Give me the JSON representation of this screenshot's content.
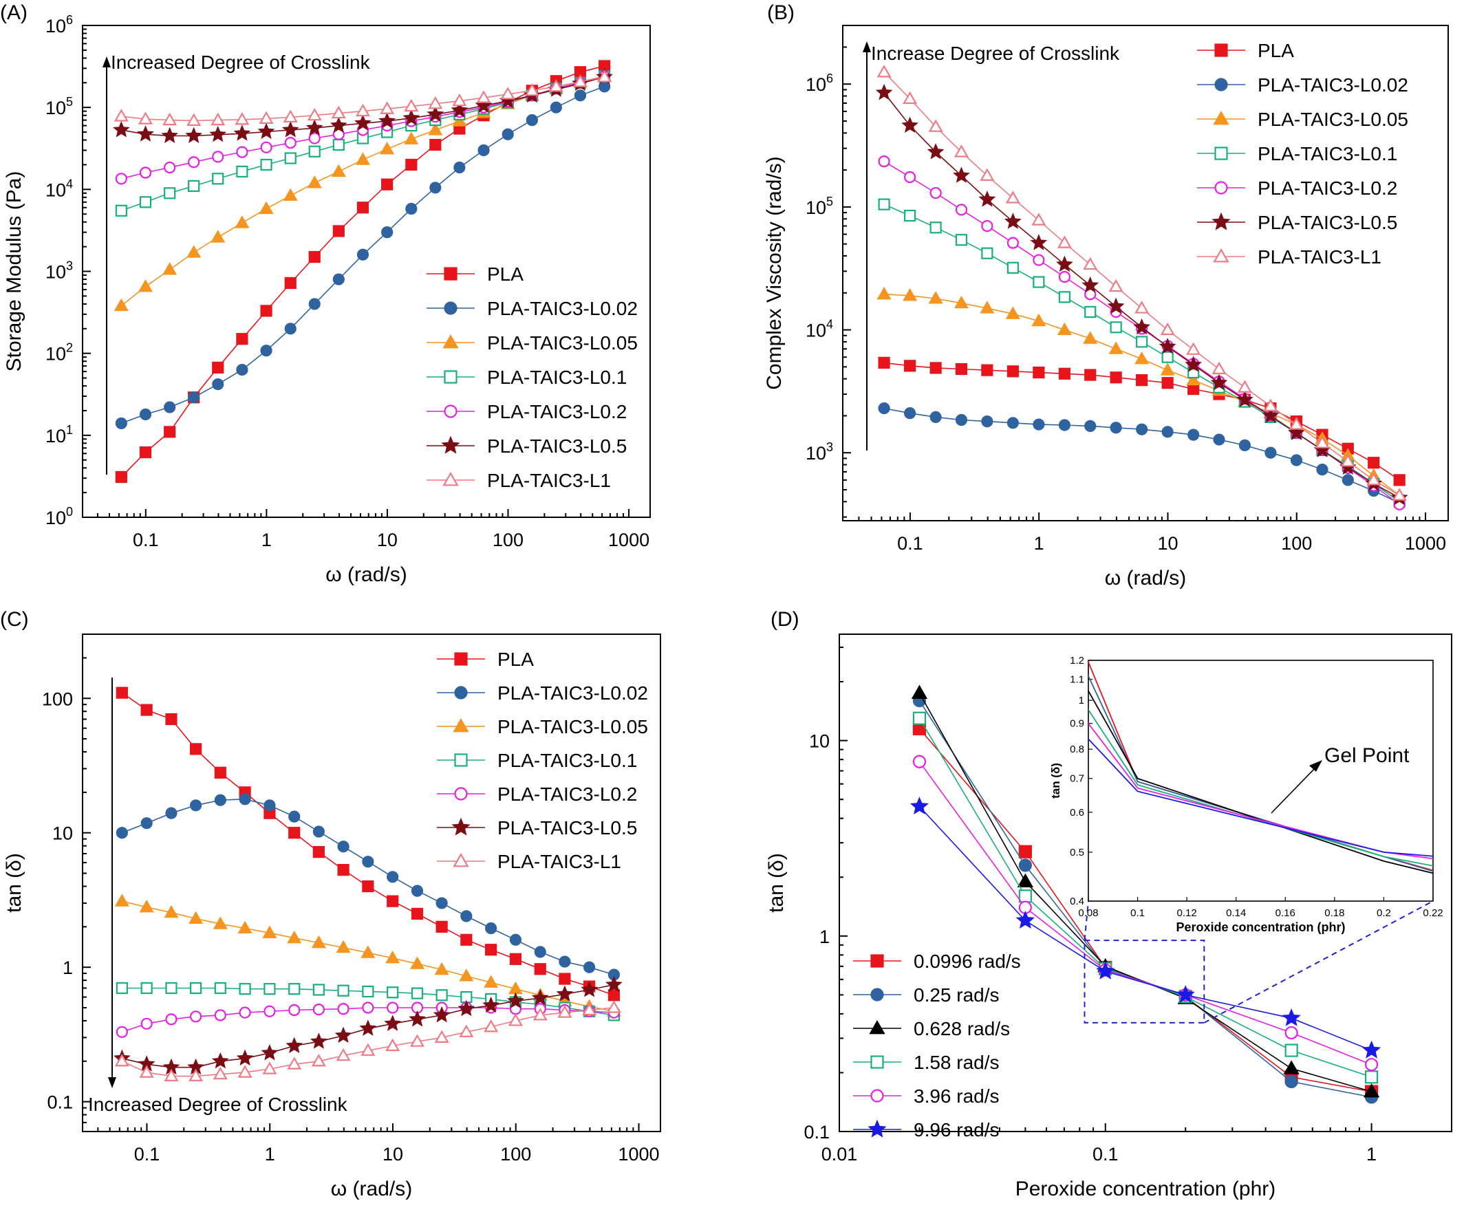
{
  "colors": {
    "PLA": "#e8141c",
    "L0.02": "#2f63a0",
    "L0.05": "#f5941e",
    "L0.1": "#18b07a",
    "L0.2": "#e61ee6",
    "L0.5": "#7a0c14",
    "L1": "#f07a84",
    "r0.0996": "#e8141c",
    "r0.25": "#2f63a0",
    "r0.628": "#000000",
    "r1.58": "#18b07a",
    "r3.96": "#e61ee6",
    "r9.96": "#1a1ae6"
  },
  "chart_data": [
    {
      "id": "A",
      "panel_label": "(A)",
      "type": "line",
      "xscale": "log",
      "yscale": "log",
      "xlim": [
        0.03,
        1500
      ],
      "ylim": [
        1,
        1000000
      ],
      "xlabel": "ω (rad/s)",
      "ylabel": "Storage Modulus (Pa)",
      "x_ticks": [
        "0.1",
        "1",
        "10",
        "100",
        "1000"
      ],
      "y_ticks": [
        [
          "10",
          "0"
        ],
        [
          "10",
          "1"
        ],
        [
          "10",
          "2"
        ],
        [
          "10",
          "3"
        ],
        [
          "10",
          "4"
        ],
        [
          "10",
          "5"
        ],
        [
          "10",
          "6"
        ]
      ],
      "annotation": "Increased Degree of Crosslink",
      "arrow_direction": "up",
      "legend_position": "lower-right",
      "x": [
        0.0628,
        0.0996,
        0.158,
        0.25,
        0.396,
        0.628,
        0.996,
        1.58,
        2.5,
        3.96,
        6.28,
        9.96,
        15.8,
        25,
        39.6,
        62.8,
        99.6,
        158,
        250,
        396,
        628
      ],
      "series": [
        {
          "name": "PLA",
          "key": "PLA",
          "marker": "square",
          "fill": true,
          "values": [
            3.1,
            6.2,
            11,
            29,
            67,
            150,
            330,
            720,
            1500,
            3100,
            6000,
            11500,
            20000,
            35000,
            55000,
            80000,
            115000,
            160000,
            210000,
            270000,
            320000
          ]
        },
        {
          "name": "PLA-TAIC3-L0.02",
          "key": "L0.02",
          "marker": "circle",
          "fill": true,
          "values": [
            14,
            18,
            22,
            29,
            42,
            63,
            108,
            200,
            400,
            800,
            1600,
            3000,
            5800,
            10500,
            18500,
            30000,
            47000,
            70000,
            100000,
            140000,
            180000
          ]
        },
        {
          "name": "PLA-TAIC3-L0.05",
          "key": "L0.05",
          "marker": "triangle",
          "fill": true,
          "values": [
            380,
            650,
            1050,
            1700,
            2600,
            3900,
            5800,
            8400,
            12000,
            16500,
            23000,
            31000,
            41000,
            53000,
            68000,
            86000,
            110000,
            140000,
            170000,
            205000,
            240000
          ]
        },
        {
          "name": "PLA-TAIC3-L0.1",
          "key": "L0.1",
          "marker": "square",
          "fill": false,
          "values": [
            5500,
            7000,
            9000,
            11000,
            13500,
            16500,
            20000,
            24000,
            29000,
            35000,
            42000,
            50000,
            60000,
            70000,
            82000,
            96000,
            115000,
            140000,
            170000,
            200000,
            240000
          ]
        },
        {
          "name": "PLA-TAIC3-L0.2",
          "key": "L0.2",
          "marker": "circle",
          "fill": false,
          "values": [
            13500,
            16000,
            18500,
            21500,
            25000,
            28500,
            32500,
            37000,
            42000,
            47000,
            53000,
            60000,
            68000,
            77000,
            88000,
            100000,
            118000,
            140000,
            170000,
            200000,
            240000
          ]
        },
        {
          "name": "PLA-TAIC3-L0.5",
          "key": "L0.5",
          "marker": "star",
          "fill": true,
          "values": [
            53000,
            47000,
            45000,
            45000,
            46500,
            48000,
            50500,
            53000,
            56000,
            60000,
            64000,
            68000,
            74000,
            82000,
            92000,
            105000,
            120000,
            140000,
            165000,
            195000,
            235000
          ]
        },
        {
          "name": "PLA-TAIC3-L1",
          "key": "L1",
          "marker": "triangle",
          "fill": false,
          "values": [
            78000,
            72000,
            70000,
            69000,
            70000,
            71000,
            73000,
            76000,
            80000,
            85000,
            90000,
            96000,
            103000,
            111000,
            120000,
            131000,
            145000,
            160000,
            180000,
            205000,
            235000
          ]
        }
      ]
    },
    {
      "id": "B",
      "panel_label": "(B)",
      "type": "line",
      "xscale": "log",
      "yscale": "log",
      "xlim": [
        0.03,
        1500
      ],
      "ylim": [
        280,
        3000000
      ],
      "xlabel": "ω (rad/s)",
      "ylabel": "Complex Viscosity (rad/s)",
      "x_ticks": [
        "0.1",
        "1",
        "10",
        "100",
        "1000"
      ],
      "y_ticks": [
        [
          "10",
          "3"
        ],
        [
          "10",
          "4"
        ],
        [
          "10",
          "5"
        ],
        [
          "10",
          "6"
        ]
      ],
      "annotation": "Increase Degree of Crosslink",
      "arrow_direction": "up",
      "legend_position": "top-right",
      "x": [
        0.0628,
        0.0996,
        0.158,
        0.25,
        0.396,
        0.628,
        0.996,
        1.58,
        2.5,
        3.96,
        6.28,
        9.96,
        15.8,
        25,
        39.6,
        62.8,
        99.6,
        158,
        250,
        396,
        628
      ],
      "series": [
        {
          "name": "PLA",
          "key": "PLA",
          "marker": "square",
          "fill": true,
          "values": [
            5400,
            5100,
            4900,
            4800,
            4700,
            4600,
            4500,
            4400,
            4300,
            4100,
            3900,
            3700,
            3300,
            3000,
            2700,
            2300,
            1800,
            1400,
            1080,
            830,
            600
          ]
        },
        {
          "name": "PLA-TAIC3-L0.02",
          "key": "L0.02",
          "marker": "circle",
          "fill": true,
          "values": [
            2300,
            2100,
            1950,
            1850,
            1800,
            1750,
            1700,
            1680,
            1650,
            1600,
            1550,
            1480,
            1400,
            1280,
            1150,
            1000,
            870,
            730,
            600,
            490,
            390
          ]
        },
        {
          "name": "PLA-TAIC3-L0.05",
          "key": "L0.05",
          "marker": "triangle",
          "fill": true,
          "values": [
            19500,
            19000,
            18000,
            16500,
            15000,
            13500,
            11800,
            10000,
            8500,
            7000,
            5800,
            4700,
            3900,
            3200,
            2600,
            2100,
            1700,
            1300,
            950,
            650,
            450
          ]
        },
        {
          "name": "PLA-TAIC3-L0.1",
          "key": "L0.1",
          "marker": "square",
          "fill": false,
          "values": [
            105000,
            85000,
            68000,
            54000,
            42000,
            32000,
            24500,
            18500,
            14000,
            10500,
            8000,
            6000,
            4500,
            3400,
            2600,
            1950,
            1450,
            1050,
            780,
            560,
            400
          ]
        },
        {
          "name": "PLA-TAIC3-L0.2",
          "key": "L0.2",
          "marker": "circle",
          "fill": false,
          "values": [
            235000,
            175000,
            130000,
            95000,
            70000,
            51000,
            37000,
            27000,
            19500,
            14000,
            10200,
            7400,
            5300,
            3800,
            2750,
            2000,
            1450,
            1050,
            750,
            540,
            380
          ]
        },
        {
          "name": "PLA-TAIC3-L0.5",
          "key": "L0.5",
          "marker": "star",
          "fill": true,
          "values": [
            850000,
            460000,
            280000,
            180000,
            115000,
            76000,
            51000,
            34000,
            23000,
            15500,
            10500,
            7300,
            5200,
            3700,
            2700,
            2000,
            1450,
            1050,
            760,
            560,
            430
          ]
        },
        {
          "name": "PLA-TAIC3-L1",
          "key": "L1",
          "marker": "triangle",
          "fill": false,
          "values": [
            1250000,
            760000,
            450000,
            280000,
            180000,
            118000,
            78000,
            51000,
            34000,
            22500,
            15000,
            10000,
            6900,
            4800,
            3400,
            2400,
            1700,
            1200,
            850,
            600,
            450
          ]
        }
      ]
    },
    {
      "id": "C",
      "panel_label": "(C)",
      "type": "line",
      "xscale": "log",
      "yscale": "log",
      "xlim": [
        0.03,
        1500
      ],
      "ylim": [
        0.06,
        300
      ],
      "xlabel": "ω (rad/s)",
      "ylabel": "tan (δ)",
      "x_ticks": [
        "0.1",
        "1",
        "10",
        "100",
        "1000"
      ],
      "y_ticks": [
        "0.1",
        "1",
        "10",
        "100"
      ],
      "annotation": "Increased Degree of Crosslink",
      "arrow_direction": "down",
      "legend_position": "top-right",
      "x": [
        0.0628,
        0.0996,
        0.158,
        0.25,
        0.396,
        0.628,
        0.996,
        1.58,
        2.5,
        3.96,
        6.28,
        9.96,
        15.8,
        25,
        39.6,
        62.8,
        99.6,
        158,
        250,
        396,
        628
      ],
      "series": [
        {
          "name": "PLA",
          "key": "PLA",
          "marker": "square",
          "fill": true,
          "values": [
            110,
            82,
            70,
            42,
            28,
            20,
            14,
            10,
            7.2,
            5.3,
            4.0,
            3.1,
            2.5,
            2.0,
            1.6,
            1.35,
            1.15,
            0.97,
            0.82,
            0.72,
            0.62
          ]
        },
        {
          "name": "PLA-TAIC3-L0.02",
          "key": "L0.02",
          "marker": "circle",
          "fill": true,
          "values": [
            10,
            11.8,
            14,
            16,
            17.5,
            17.8,
            16,
            13.2,
            10.2,
            7.9,
            6.1,
            4.7,
            3.7,
            3.0,
            2.4,
            1.95,
            1.6,
            1.3,
            1.1,
            1.0,
            0.88
          ]
        },
        {
          "name": "PLA-TAIC3-L0.05",
          "key": "L0.05",
          "marker": "triangle",
          "fill": true,
          "values": [
            3.1,
            2.8,
            2.55,
            2.3,
            2.1,
            1.95,
            1.8,
            1.65,
            1.52,
            1.4,
            1.28,
            1.17,
            1.06,
            0.96,
            0.86,
            0.77,
            0.69,
            0.62,
            0.56,
            0.51,
            0.47
          ]
        },
        {
          "name": "PLA-TAIC3-L0.1",
          "key": "L0.1",
          "marker": "square",
          "fill": false,
          "values": [
            0.7,
            0.7,
            0.7,
            0.7,
            0.7,
            0.69,
            0.69,
            0.69,
            0.68,
            0.67,
            0.66,
            0.65,
            0.64,
            0.62,
            0.6,
            0.58,
            0.55,
            0.53,
            0.5,
            0.47,
            0.44
          ]
        },
        {
          "name": "PLA-TAIC3-L0.2",
          "key": "L0.2",
          "marker": "circle",
          "fill": false,
          "values": [
            0.33,
            0.38,
            0.41,
            0.43,
            0.44,
            0.46,
            0.47,
            0.48,
            0.485,
            0.49,
            0.5,
            0.5,
            0.5,
            0.5,
            0.5,
            0.5,
            0.49,
            0.49,
            0.48,
            0.47,
            0.46
          ]
        },
        {
          "name": "PLA-TAIC3-L0.5",
          "key": "L0.5",
          "marker": "star",
          "fill": true,
          "values": [
            0.21,
            0.19,
            0.18,
            0.18,
            0.2,
            0.21,
            0.23,
            0.26,
            0.28,
            0.31,
            0.35,
            0.38,
            0.41,
            0.44,
            0.49,
            0.52,
            0.56,
            0.59,
            0.63,
            0.68,
            0.74
          ]
        },
        {
          "name": "PLA-TAIC3-L1",
          "key": "L1",
          "marker": "triangle",
          "fill": false,
          "values": [
            0.2,
            0.165,
            0.155,
            0.155,
            0.16,
            0.165,
            0.175,
            0.19,
            0.2,
            0.22,
            0.24,
            0.26,
            0.28,
            0.3,
            0.33,
            0.36,
            0.4,
            0.44,
            0.46,
            0.48,
            0.5
          ]
        }
      ]
    },
    {
      "id": "D",
      "panel_label": "(D)",
      "type": "line",
      "xscale": "log",
      "yscale": "log",
      "xlim": [
        0.01,
        2
      ],
      "ylim": [
        0.1,
        35
      ],
      "xlabel": "Peroxide concentration (phr)",
      "ylabel": "tan (δ)",
      "x_ticks": [
        "0.01",
        "0.1",
        "1"
      ],
      "y_ticks": [
        "0.1",
        "1",
        "10"
      ],
      "legend_position": "lower-left",
      "x": [
        0.02,
        0.05,
        0.1,
        0.2,
        0.5,
        1
      ],
      "series": [
        {
          "name": "0.0996 rad/s",
          "key": "r0.0996",
          "marker": "square",
          "fill": true,
          "values": [
            11.5,
            2.7,
            0.69,
            0.49,
            0.19,
            0.16
          ]
        },
        {
          "name": "0.25 rad/s",
          "key": "r0.25",
          "marker": "circle",
          "fill": true,
          "values": [
            16,
            2.3,
            0.69,
            0.49,
            0.18,
            0.15
          ]
        },
        {
          "name": "0.628 rad/s",
          "key": "r0.628",
          "marker": "triangle",
          "fill": true,
          "values": [
            17.5,
            1.9,
            0.7,
            0.48,
            0.21,
            0.16
          ]
        },
        {
          "name": "1.58 rad/s",
          "key": "r1.58",
          "marker": "square",
          "fill": false,
          "values": [
            13,
            1.6,
            0.68,
            0.49,
            0.26,
            0.19
          ]
        },
        {
          "name": "3.96 rad/s",
          "key": "r3.96",
          "marker": "circle",
          "fill": false,
          "values": [
            7.8,
            1.4,
            0.67,
            0.5,
            0.32,
            0.22
          ]
        },
        {
          "name": "9.96 rad/s",
          "key": "r9.96",
          "marker": "star",
          "fill": true,
          "values": [
            4.6,
            1.2,
            0.66,
            0.5,
            0.38,
            0.26
          ]
        }
      ],
      "inset": {
        "xscale": "linear",
        "yscale": "log",
        "xlim": [
          0.08,
          0.22
        ],
        "ylim": [
          0.4,
          1.2
        ],
        "xlabel": "Peroxide concentration (phr)",
        "ylabel": "tan (δ)",
        "x_ticks": [
          "0.08",
          "0.1",
          "0.12",
          "0.14",
          "0.16",
          "0.18",
          "0.2",
          "0.22"
        ],
        "y_ticks": [
          "0.4",
          "0.5",
          "0.6",
          "0.7",
          "0.8",
          "0.9",
          "1",
          "1.1",
          "1.2"
        ],
        "annotation": "Gel Point"
      }
    }
  ]
}
